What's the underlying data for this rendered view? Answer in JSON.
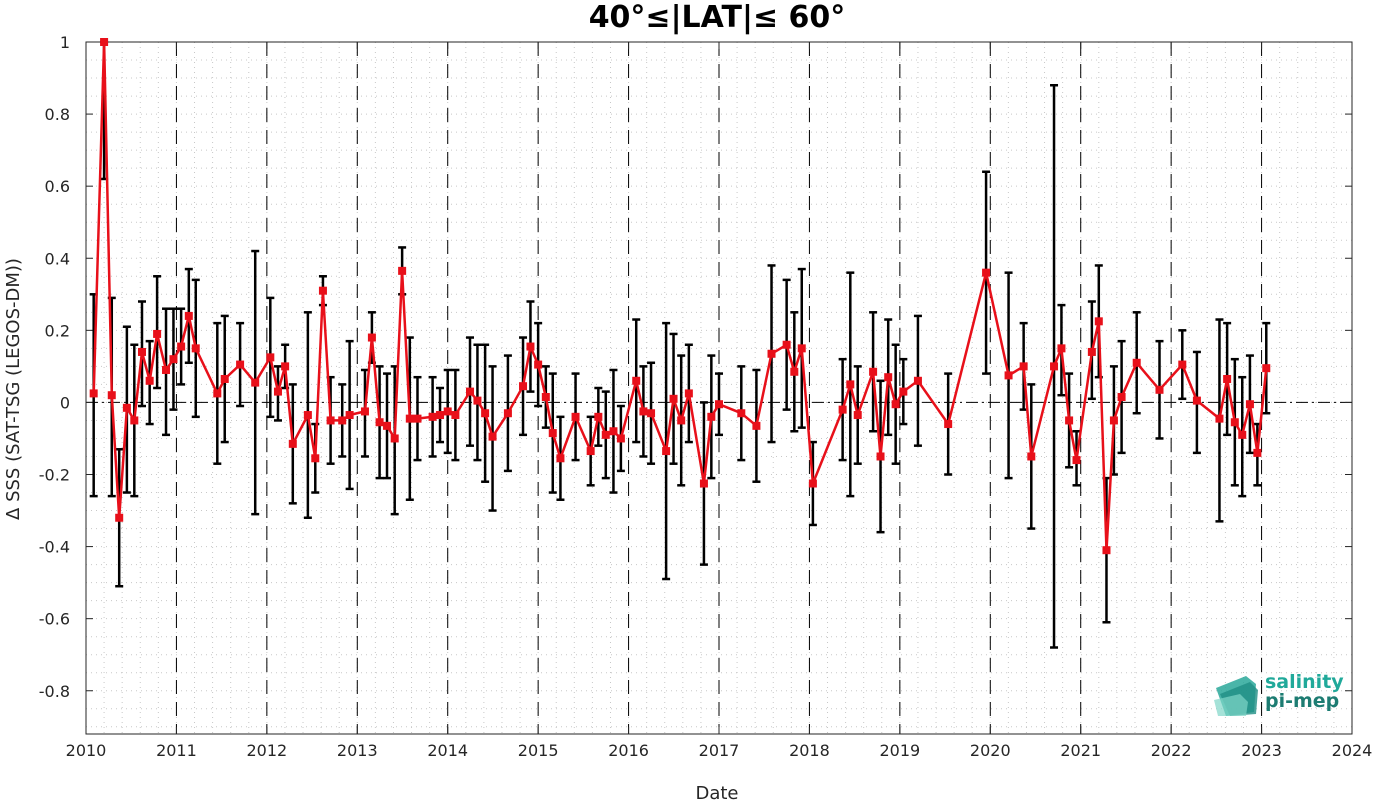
{
  "chart_data": {
    "type": "line",
    "title": "40°≤|LAT|≤ 60°",
    "xlabel": "Date",
    "ylabel": "Δ SSS (SAT-TSG (LEGOS-DM))",
    "xlim": [
      "2010-01-01",
      "2024-01-01"
    ],
    "ylim": [
      -0.92,
      1.0
    ],
    "x_ticks": [
      "2010",
      "2011",
      "2012",
      "2013",
      "2014",
      "2015",
      "2016",
      "2017",
      "2018",
      "2019",
      "2020",
      "2021",
      "2022",
      "2023",
      "2024"
    ],
    "y_ticks": [
      1,
      0.8,
      0.6,
      0.4,
      0.2,
      0,
      -0.2,
      -0.4,
      -0.6,
      -0.8
    ],
    "y_tick_labels": [
      "1",
      "0.8",
      "0.6",
      "0.4",
      "0.2",
      "0",
      "-0.2",
      "-0.4",
      "-0.6",
      "-0.8"
    ],
    "grid": "minor dotted",
    "year_separators": "dashed vertical lines at each January 1",
    "zero_line": "dash-dot horizontal at 0",
    "series": [
      {
        "color": "#e8101a",
        "marker": "square",
        "errorbar_color": "#000000",
        "points": [
          {
            "x": "2010-02-01",
            "y": 0.025,
            "lo": -0.26,
            "hi": 0.3
          },
          {
            "x": "2010-03-15",
            "y": 1.0,
            "lo": 0.62,
            "hi": 1.0
          },
          {
            "x": "2010-04-15",
            "y": 0.02,
            "lo": -0.26,
            "hi": 0.29
          },
          {
            "x": "2010-05-15",
            "y": -0.32,
            "lo": -0.51,
            "hi": -0.13
          },
          {
            "x": "2010-06-15",
            "y": -0.015,
            "lo": -0.25,
            "hi": 0.21
          },
          {
            "x": "2010-07-15",
            "y": -0.05,
            "lo": -0.26,
            "hi": 0.16
          },
          {
            "x": "2010-08-15",
            "y": 0.14,
            "lo": -0.01,
            "hi": 0.28
          },
          {
            "x": "2010-09-15",
            "y": 0.06,
            "lo": -0.06,
            "hi": 0.17
          },
          {
            "x": "2010-10-15",
            "y": 0.19,
            "lo": 0.04,
            "hi": 0.35
          },
          {
            "x": "2010-11-20",
            "y": 0.09,
            "lo": -0.09,
            "hi": 0.26
          },
          {
            "x": "2010-12-20",
            "y": 0.12,
            "lo": -0.02,
            "hi": 0.26
          },
          {
            "x": "2011-01-20",
            "y": 0.155,
            "lo": 0.05,
            "hi": 0.26
          },
          {
            "x": "2011-02-20",
            "y": 0.24,
            "lo": 0.11,
            "hi": 0.37
          },
          {
            "x": "2011-03-20",
            "y": 0.15,
            "lo": -0.04,
            "hi": 0.34
          },
          {
            "x": "2011-06-15",
            "y": 0.025,
            "lo": -0.17,
            "hi": 0.22
          },
          {
            "x": "2011-07-15",
            "y": 0.065,
            "lo": -0.11,
            "hi": 0.24
          },
          {
            "x": "2011-09-15",
            "y": 0.105,
            "lo": -0.01,
            "hi": 0.22
          },
          {
            "x": "2011-11-15",
            "y": 0.055,
            "lo": -0.31,
            "hi": 0.42
          },
          {
            "x": "2012-01-15",
            "y": 0.125,
            "lo": -0.04,
            "hi": 0.29
          },
          {
            "x": "2012-02-15",
            "y": 0.03,
            "lo": -0.05,
            "hi": 0.1
          },
          {
            "x": "2012-03-15",
            "y": 0.1,
            "lo": 0.04,
            "hi": 0.16
          },
          {
            "x": "2012-04-15",
            "y": -0.115,
            "lo": -0.28,
            "hi": 0.05
          },
          {
            "x": "2012-06-15",
            "y": -0.035,
            "lo": -0.32,
            "hi": 0.25
          },
          {
            "x": "2012-07-15",
            "y": -0.155,
            "lo": -0.25,
            "hi": -0.06
          },
          {
            "x": "2012-08-15",
            "y": 0.31,
            "lo": 0.27,
            "hi": 0.35
          },
          {
            "x": "2012-09-15",
            "y": -0.05,
            "lo": -0.17,
            "hi": 0.07
          },
          {
            "x": "2012-11-01",
            "y": -0.05,
            "lo": -0.15,
            "hi": 0.05
          },
          {
            "x": "2012-12-01",
            "y": -0.035,
            "lo": -0.24,
            "hi": 0.17
          },
          {
            "x": "2013-02-01",
            "y": -0.025,
            "lo": -0.15,
            "hi": 0.09
          },
          {
            "x": "2013-03-01",
            "y": 0.18,
            "lo": 0.11,
            "hi": 0.25
          },
          {
            "x": "2013-04-01",
            "y": -0.055,
            "lo": -0.21,
            "hi": 0.1
          },
          {
            "x": "2013-05-01",
            "y": -0.065,
            "lo": -0.21,
            "hi": 0.08
          },
          {
            "x": "2013-06-01",
            "y": -0.1,
            "lo": -0.31,
            "hi": 0.1
          },
          {
            "x": "2013-07-01",
            "y": 0.365,
            "lo": 0.3,
            "hi": 0.43
          },
          {
            "x": "2013-08-01",
            "y": -0.045,
            "lo": -0.27,
            "hi": 0.18
          },
          {
            "x": "2013-09-01",
            "y": -0.045,
            "lo": -0.16,
            "hi": 0.07
          },
          {
            "x": "2013-11-01",
            "y": -0.04,
            "lo": -0.15,
            "hi": 0.07
          },
          {
            "x": "2013-12-01",
            "y": -0.035,
            "lo": -0.11,
            "hi": 0.04
          },
          {
            "x": "2014-01-01",
            "y": -0.025,
            "lo": -0.14,
            "hi": 0.09
          },
          {
            "x": "2014-02-01",
            "y": -0.035,
            "lo": -0.16,
            "hi": 0.09
          },
          {
            "x": "2014-04-01",
            "y": 0.03,
            "lo": -0.12,
            "hi": 0.18
          },
          {
            "x": "2014-05-01",
            "y": 0.005,
            "lo": -0.16,
            "hi": 0.16
          },
          {
            "x": "2014-06-01",
            "y": -0.03,
            "lo": -0.22,
            "hi": 0.16
          },
          {
            "x": "2014-07-01",
            "y": -0.095,
            "lo": -0.3,
            "hi": 0.1
          },
          {
            "x": "2014-09-01",
            "y": -0.03,
            "lo": -0.19,
            "hi": 0.13
          },
          {
            "x": "2014-11-01",
            "y": 0.045,
            "lo": -0.09,
            "hi": 0.18
          },
          {
            "x": "2014-12-01",
            "y": 0.155,
            "lo": 0.03,
            "hi": 0.28
          },
          {
            "x": "2015-01-01",
            "y": 0.105,
            "lo": -0.01,
            "hi": 0.22
          },
          {
            "x": "2015-02-01",
            "y": 0.015,
            "lo": -0.07,
            "hi": 0.1
          },
          {
            "x": "2015-03-01",
            "y": -0.085,
            "lo": -0.25,
            "hi": 0.08
          },
          {
            "x": "2015-04-01",
            "y": -0.155,
            "lo": -0.27,
            "hi": -0.04
          },
          {
            "x": "2015-06-01",
            "y": -0.04,
            "lo": -0.16,
            "hi": 0.08
          },
          {
            "x": "2015-08-01",
            "y": -0.135,
            "lo": -0.23,
            "hi": -0.04
          },
          {
            "x": "2015-09-01",
            "y": -0.04,
            "lo": -0.12,
            "hi": 0.04
          },
          {
            "x": "2015-10-01",
            "y": -0.09,
            "lo": -0.21,
            "hi": 0.03
          },
          {
            "x": "2015-11-01",
            "y": -0.08,
            "lo": -0.25,
            "hi": 0.09
          },
          {
            "x": "2015-12-01",
            "y": -0.1,
            "lo": -0.19,
            "hi": -0.01
          },
          {
            "x": "2016-02-01",
            "y": 0.06,
            "lo": -0.11,
            "hi": 0.23
          },
          {
            "x": "2016-03-01",
            "y": -0.025,
            "lo": -0.15,
            "hi": 0.1
          },
          {
            "x": "2016-04-01",
            "y": -0.03,
            "lo": -0.17,
            "hi": 0.11
          },
          {
            "x": "2016-06-01",
            "y": -0.135,
            "lo": -0.49,
            "hi": 0.22
          },
          {
            "x": "2016-07-01",
            "y": 0.01,
            "lo": -0.17,
            "hi": 0.19
          },
          {
            "x": "2016-08-01",
            "y": -0.05,
            "lo": -0.23,
            "hi": 0.13
          },
          {
            "x": "2016-09-01",
            "y": 0.025,
            "lo": -0.11,
            "hi": 0.16
          },
          {
            "x": "2016-11-01",
            "y": -0.225,
            "lo": -0.45,
            "hi": 0.0
          },
          {
            "x": "2016-12-01",
            "y": -0.04,
            "lo": -0.21,
            "hi": 0.13
          },
          {
            "x": "2017-01-01",
            "y": -0.005,
            "lo": -0.09,
            "hi": 0.08
          },
          {
            "x": "2017-04-01",
            "y": -0.03,
            "lo": -0.16,
            "hi": 0.1
          },
          {
            "x": "2017-06-01",
            "y": -0.065,
            "lo": -0.22,
            "hi": 0.09
          },
          {
            "x": "2017-08-01",
            "y": 0.135,
            "lo": -0.11,
            "hi": 0.38
          },
          {
            "x": "2017-10-01",
            "y": 0.16,
            "lo": -0.02,
            "hi": 0.34
          },
          {
            "x": "2017-11-01",
            "y": 0.085,
            "lo": -0.08,
            "hi": 0.25
          },
          {
            "x": "2017-12-01",
            "y": 0.15,
            "lo": -0.07,
            "hi": 0.37
          },
          {
            "x": "2018-01-15",
            "y": -0.225,
            "lo": -0.34,
            "hi": -0.11
          },
          {
            "x": "2018-05-15",
            "y": -0.02,
            "lo": -0.16,
            "hi": 0.12
          },
          {
            "x": "2018-06-15",
            "y": 0.05,
            "lo": -0.26,
            "hi": 0.36
          },
          {
            "x": "2018-07-15",
            "y": -0.035,
            "lo": -0.17,
            "hi": 0.1
          },
          {
            "x": "2018-09-15",
            "y": 0.085,
            "lo": -0.08,
            "hi": 0.25
          },
          {
            "x": "2018-10-15",
            "y": -0.15,
            "lo": -0.36,
            "hi": 0.06
          },
          {
            "x": "2018-11-15",
            "y": 0.07,
            "lo": -0.09,
            "hi": 0.23
          },
          {
            "x": "2018-12-15",
            "y": -0.005,
            "lo": -0.17,
            "hi": 0.16
          },
          {
            "x": "2019-01-15",
            "y": 0.03,
            "lo": -0.06,
            "hi": 0.12
          },
          {
            "x": "2019-03-15",
            "y": 0.06,
            "lo": -0.12,
            "hi": 0.24
          },
          {
            "x": "2019-07-15",
            "y": -0.06,
            "lo": -0.2,
            "hi": 0.08
          },
          {
            "x": "2019-12-15",
            "y": 0.36,
            "lo": 0.08,
            "hi": 0.64
          },
          {
            "x": "2020-03-15",
            "y": 0.075,
            "lo": -0.21,
            "hi": 0.36
          },
          {
            "x": "2020-05-15",
            "y": 0.1,
            "lo": -0.02,
            "hi": 0.22
          },
          {
            "x": "2020-06-15",
            "y": -0.15,
            "lo": -0.35,
            "hi": 0.05
          },
          {
            "x": "2020-09-15",
            "y": 0.1,
            "lo": -0.68,
            "hi": 0.88
          },
          {
            "x": "2020-10-15",
            "y": 0.15,
            "lo": 0.02,
            "hi": 0.27
          },
          {
            "x": "2020-11-15",
            "y": -0.05,
            "lo": -0.18,
            "hi": 0.08
          },
          {
            "x": "2020-12-15",
            "y": -0.16,
            "lo": -0.23,
            "hi": -0.08
          },
          {
            "x": "2021-02-15",
            "y": 0.14,
            "lo": 0.01,
            "hi": 0.28
          },
          {
            "x": "2021-03-15",
            "y": 0.225,
            "lo": 0.07,
            "hi": 0.38
          },
          {
            "x": "2021-04-15",
            "y": -0.41,
            "lo": -0.61,
            "hi": -0.21
          },
          {
            "x": "2021-05-15",
            "y": -0.05,
            "lo": -0.2,
            "hi": 0.1
          },
          {
            "x": "2021-06-15",
            "y": 0.015,
            "lo": -0.14,
            "hi": 0.17
          },
          {
            "x": "2021-08-15",
            "y": 0.11,
            "lo": -0.03,
            "hi": 0.25
          },
          {
            "x": "2021-11-15",
            "y": 0.035,
            "lo": -0.1,
            "hi": 0.17
          },
          {
            "x": "2022-02-15",
            "y": 0.105,
            "lo": 0.01,
            "hi": 0.2
          },
          {
            "x": "2022-04-15",
            "y": 0.005,
            "lo": -0.14,
            "hi": 0.14
          },
          {
            "x": "2022-07-15",
            "y": -0.045,
            "lo": -0.33,
            "hi": 0.23
          },
          {
            "x": "2022-08-15",
            "y": 0.065,
            "lo": -0.09,
            "hi": 0.22
          },
          {
            "x": "2022-09-15",
            "y": -0.055,
            "lo": -0.23,
            "hi": 0.12
          },
          {
            "x": "2022-10-15",
            "y": -0.09,
            "lo": -0.26,
            "hi": 0.07
          },
          {
            "x": "2022-11-15",
            "y": -0.005,
            "lo": -0.14,
            "hi": 0.13
          },
          {
            "x": "2022-12-15",
            "y": -0.14,
            "lo": -0.23,
            "hi": -0.06
          },
          {
            "x": "2023-01-20",
            "y": 0.095,
            "lo": -0.03,
            "hi": 0.22
          }
        ]
      }
    ]
  },
  "logo": {
    "line1": "salinity",
    "line2": "pi-mep",
    "color1": "#20a99a",
    "color2": "#1d7c72"
  }
}
